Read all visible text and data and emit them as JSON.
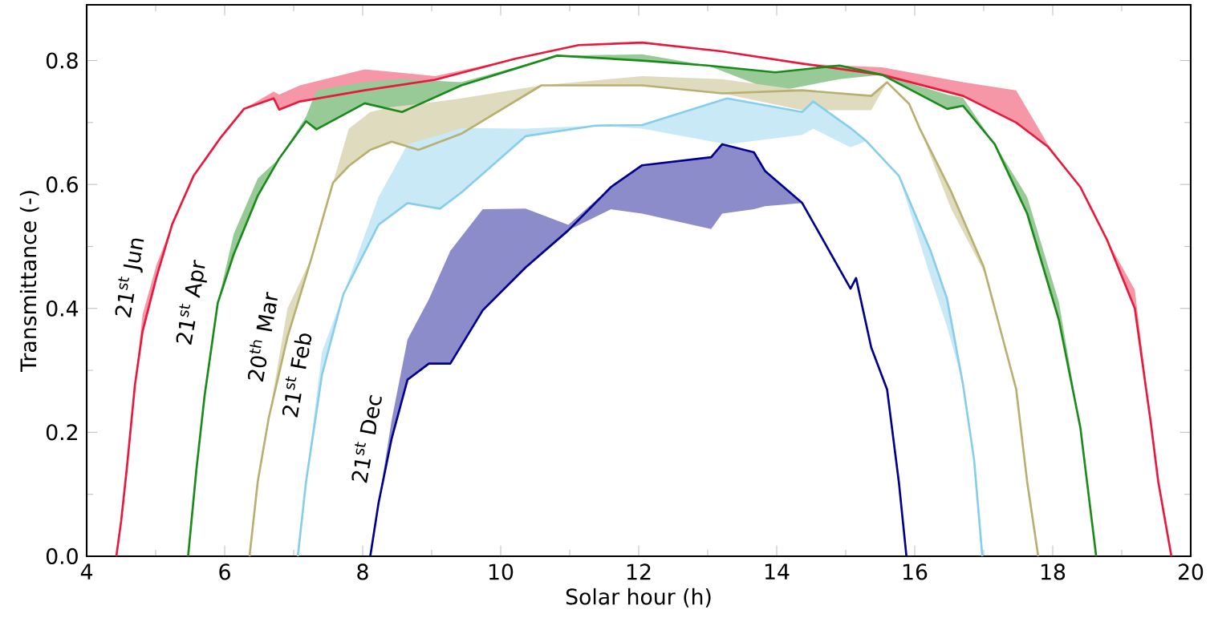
{
  "chart_data": {
    "type": "line",
    "xlabel": "Solar hour (h)",
    "ylabel": "Transmittance (-)",
    "xlim": [
      4,
      20
    ],
    "ylim": [
      0,
      0.89
    ],
    "xticks": [
      4,
      6,
      8,
      10,
      12,
      14,
      16,
      18,
      20
    ],
    "yticks": [
      {
        "value": 0,
        "label": "0.0"
      },
      {
        "value": 0.2,
        "label": "0.2"
      },
      {
        "value": 0.4,
        "label": "0.4"
      },
      {
        "value": 0.6,
        "label": "0.6"
      },
      {
        "value": 0.8,
        "label": "0.8"
      }
    ],
    "grid": false,
    "legend": false,
    "marker": "none",
    "line_style": "solid",
    "series": [
      {
        "name": "21$^{st}$ Jun",
        "color": "#e8193c",
        "x": [
          4.43,
          4.5,
          4.58,
          4.7,
          4.81,
          5.01,
          5.24,
          5.55,
          5.93,
          6.28,
          6.71,
          6.79,
          7.09,
          8.03,
          9.05,
          10.21,
          11.13,
          12.05,
          13.2,
          14.37,
          15.53,
          16.7,
          17.47,
          17.93,
          18.4,
          18.79,
          19.19,
          19.42,
          19.53,
          19.72
        ],
        "values": [
          0,
          0.057,
          0.14,
          0.277,
          0.363,
          0.45,
          0.536,
          0.614,
          0.674,
          0.722,
          0.739,
          0.721,
          0.734,
          0.752,
          0.769,
          0.803,
          0.825,
          0.829,
          0.815,
          0.795,
          0.777,
          0.743,
          0.7,
          0.661,
          0.596,
          0.51,
          0.4,
          0.217,
          0.12,
          0
        ],
        "lower": [
          0,
          0.057,
          0.14,
          0.277,
          0.363,
          0.45,
          0.536,
          0.614,
          0.674,
          0.722,
          0.739,
          0.721,
          0.734,
          0.752,
          0.769,
          0.803,
          0.825,
          0.829,
          0.815,
          0.795,
          0.777,
          0.743,
          0.7,
          0.661,
          0.596,
          0.51,
          0.4,
          0.217,
          0.12,
          0
        ],
        "upper": [
          0,
          0.057,
          0.14,
          0.277,
          0.39,
          0.47,
          0.536,
          0.614,
          0.674,
          0.722,
          0.75,
          0.745,
          0.76,
          0.786,
          0.775,
          0.803,
          0.825,
          0.829,
          0.815,
          0.795,
          0.789,
          0.765,
          0.752,
          0.665,
          0.596,
          0.51,
          0.43,
          0.217,
          0.12,
          0
        ]
      },
      {
        "name": "21$^{st}$ Apr",
        "color": "#1a8a1a",
        "x": [
          5.47,
          5.59,
          5.71,
          5.9,
          6.13,
          6.48,
          6.79,
          7.18,
          7.33,
          8.03,
          8.57,
          9.43,
          10.82,
          12.05,
          13.0,
          13.98,
          14.91,
          15.53,
          16.47,
          16.7,
          17.16,
          17.63,
          18.09,
          18.4,
          18.63
        ],
        "values": [
          0,
          0.14,
          0.26,
          0.409,
          0.487,
          0.582,
          0.642,
          0.702,
          0.689,
          0.731,
          0.717,
          0.76,
          0.808,
          0.8,
          0.792,
          0.781,
          0.792,
          0.777,
          0.722,
          0.727,
          0.665,
          0.553,
          0.381,
          0.208,
          0
        ],
        "lower": [
          0,
          0.14,
          0.26,
          0.409,
          0.487,
          0.582,
          0.642,
          0.702,
          0.689,
          0.731,
          0.717,
          0.76,
          0.808,
          0.8,
          0.792,
          0.75,
          0.77,
          0.777,
          0.722,
          0.727,
          0.665,
          0.553,
          0.381,
          0.208,
          0
        ],
        "upper": [
          0,
          0.14,
          0.26,
          0.409,
          0.52,
          0.61,
          0.642,
          0.71,
          0.752,
          0.765,
          0.77,
          0.765,
          0.808,
          0.81,
          0.792,
          0.781,
          0.792,
          0.777,
          0.745,
          0.74,
          0.665,
          0.58,
          0.41,
          0.208,
          0
        ]
      },
      {
        "name": "20$^{th}$ Mar",
        "color": "#b8b070",
        "x": [
          6.36,
          6.48,
          6.64,
          6.91,
          7.26,
          7.57,
          7.8,
          8.11,
          8.42,
          8.81,
          9.43,
          10.59,
          12.05,
          13.21,
          14.37,
          15.37,
          15.6,
          15.92,
          16.07,
          16.53,
          17.0,
          17.47,
          17.63,
          17.79
        ],
        "values": [
          0,
          0.121,
          0.224,
          0.354,
          0.482,
          0.603,
          0.63,
          0.656,
          0.669,
          0.656,
          0.682,
          0.76,
          0.76,
          0.747,
          0.752,
          0.743,
          0.765,
          0.73,
          0.691,
          0.588,
          0.467,
          0.27,
          0.12,
          0
        ],
        "lower": [
          0,
          0.121,
          0.224,
          0.354,
          0.482,
          0.603,
          0.63,
          0.656,
          0.669,
          0.656,
          0.682,
          0.76,
          0.76,
          0.747,
          0.72,
          0.72,
          0.765,
          0.73,
          0.691,
          0.56,
          0.46,
          0.27,
          0.12,
          0
        ],
        "upper": [
          0,
          0.121,
          0.224,
          0.4,
          0.482,
          0.603,
          0.69,
          0.717,
          0.725,
          0.73,
          0.739,
          0.76,
          0.775,
          0.77,
          0.752,
          0.743,
          0.765,
          0.73,
          0.691,
          0.588,
          0.467,
          0.27,
          0.12,
          0
        ]
      },
      {
        "name": "21$^{st}$ Feb",
        "color": "#87ceeb",
        "x": [
          7.06,
          7.18,
          7.41,
          7.72,
          8.23,
          8.65,
          9.12,
          9.43,
          10.36,
          11.37,
          12.05,
          13.28,
          14.37,
          14.53,
          15.07,
          15.3,
          15.77,
          16.23,
          16.47,
          16.7,
          16.86,
          16.98
        ],
        "values": [
          0,
          0.121,
          0.293,
          0.423,
          0.535,
          0.57,
          0.561,
          0.587,
          0.678,
          0.695,
          0.696,
          0.739,
          0.717,
          0.734,
          0.691,
          0.67,
          0.614,
          0.493,
          0.415,
          0.277,
          0.156,
          0
        ],
        "lower": [
          0,
          0.121,
          0.293,
          0.423,
          0.535,
          0.57,
          0.561,
          0.587,
          0.678,
          0.695,
          0.69,
          0.665,
          0.68,
          0.69,
          0.66,
          0.67,
          0.614,
          0.45,
          0.37,
          0.277,
          0.156,
          0
        ],
        "upper": [
          0,
          0.121,
          0.33,
          0.423,
          0.58,
          0.665,
          0.68,
          0.691,
          0.69,
          0.695,
          0.696,
          0.739,
          0.717,
          0.734,
          0.691,
          0.67,
          0.614,
          0.493,
          0.415,
          0.277,
          0.156,
          0
        ]
      },
      {
        "name": "21$^{st}$ Dec",
        "color": "#00008b",
        "x": [
          8.11,
          8.23,
          8.42,
          8.65,
          8.96,
          9.27,
          9.74,
          10.36,
          10.98,
          11.6,
          12.05,
          13.05,
          13.21,
          13.67,
          13.83,
          14.37,
          15.07,
          15.15,
          15.37,
          15.6,
          15.77,
          15.88
        ],
        "values": [
          0,
          0.086,
          0.19,
          0.285,
          0.311,
          0.311,
          0.397,
          0.466,
          0.526,
          0.596,
          0.631,
          0.644,
          0.665,
          0.652,
          0.622,
          0.57,
          0.432,
          0.449,
          0.337,
          0.269,
          0.12,
          0
        ],
        "lower": [
          0,
          0.086,
          0.19,
          0.285,
          0.311,
          0.311,
          0.397,
          0.466,
          0.526,
          0.56,
          0.553,
          0.528,
          0.553,
          0.56,
          0.565,
          0.57,
          0.432,
          0.449,
          0.337,
          0.269,
          0.12,
          0
        ],
        "upper": [
          0,
          0.086,
          0.22,
          0.35,
          0.415,
          0.493,
          0.56,
          0.561,
          0.535,
          0.596,
          0.631,
          0.644,
          0.665,
          0.652,
          0.622,
          0.57,
          0.432,
          0.449,
          0.337,
          0.269,
          0.12,
          0
        ]
      }
    ]
  }
}
